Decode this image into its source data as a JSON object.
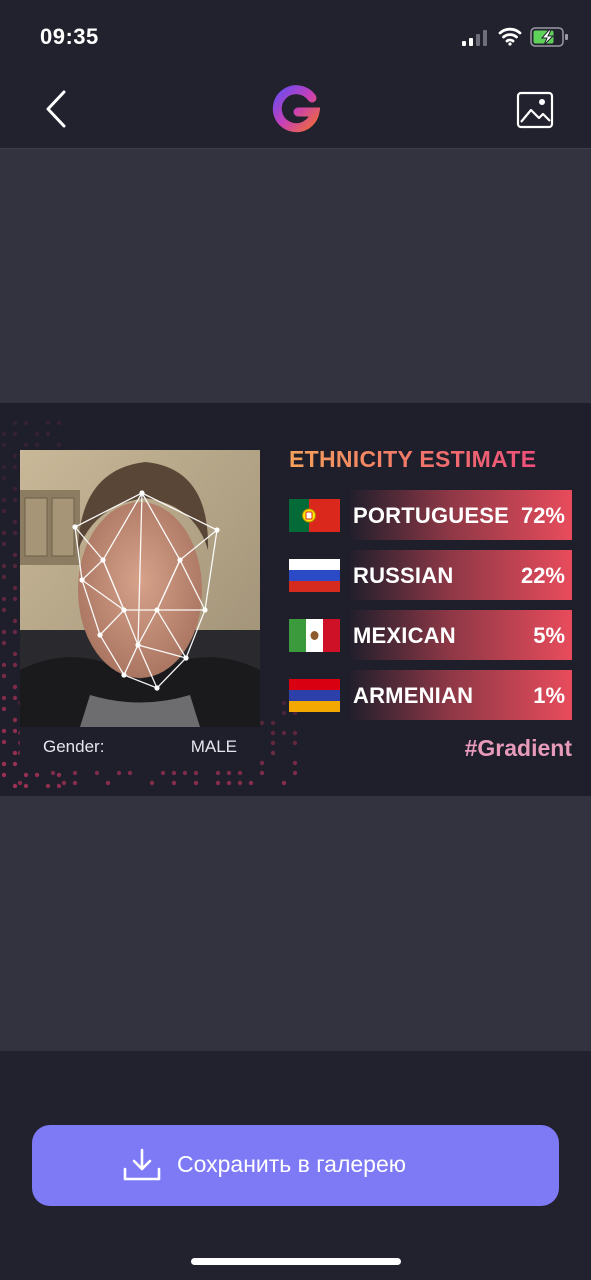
{
  "status": {
    "time": "09:35"
  },
  "nav": {
    "back_icon": "chevron-left-icon",
    "logo_icon": "gradient-logo-icon",
    "image_icon": "image-icon"
  },
  "result": {
    "title": "ETHNICITY ESTIMATE",
    "gender_label": "Gender:",
    "gender_value": "MALE",
    "hashtag": "#Gradient",
    "items": [
      {
        "name": "PORTUGUESE",
        "percent": "72%",
        "flag": "portugal-flag-icon"
      },
      {
        "name": "RUSSIAN",
        "percent": "22%",
        "flag": "russia-flag-icon"
      },
      {
        "name": "MEXICAN",
        "percent": "5%",
        "flag": "mexico-flag-icon"
      },
      {
        "name": "ARMENIAN",
        "percent": "1%",
        "flag": "armenia-flag-icon"
      }
    ]
  },
  "actions": {
    "save_label": "Сохранить в галерею",
    "save_icon": "download-icon"
  },
  "colors": {
    "accent": "#7e7af6",
    "bar": "#e84c5c",
    "background": "#33323f",
    "card": "#1f1e2b"
  }
}
